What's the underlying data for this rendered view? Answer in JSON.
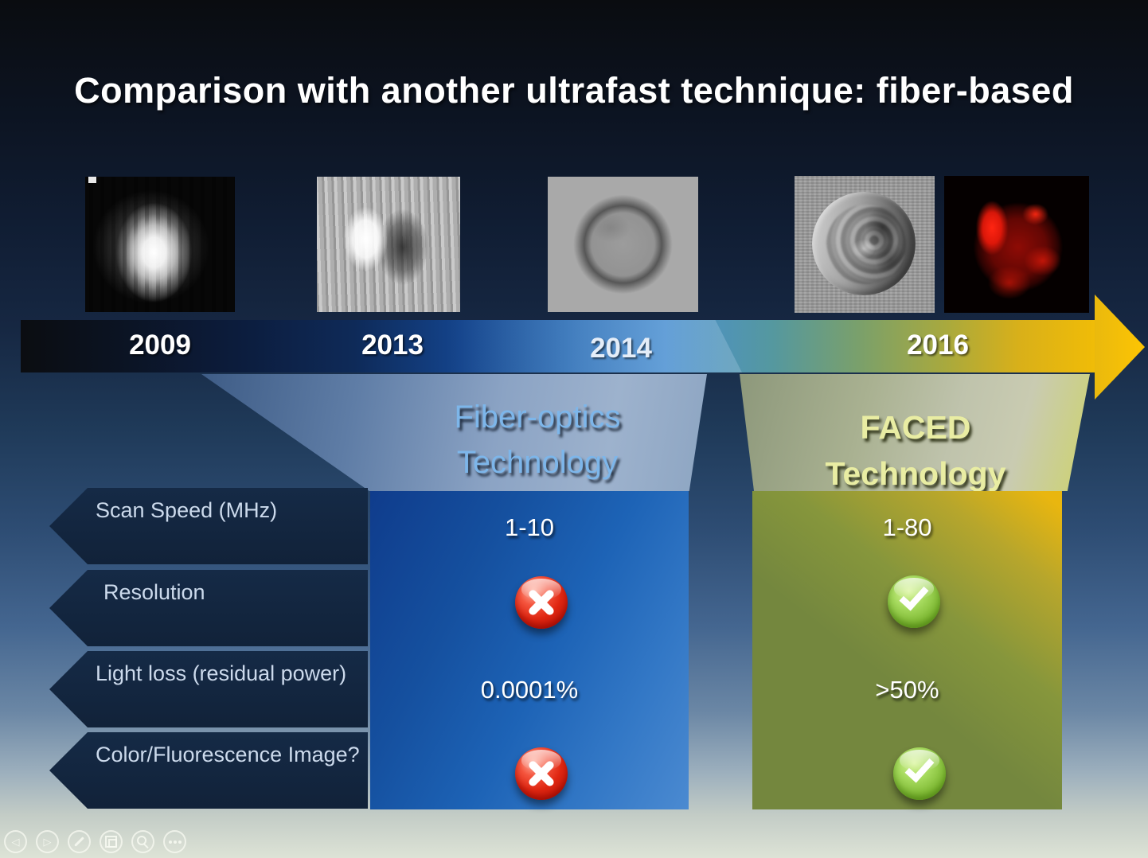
{
  "title": "Comparison with another ultrafast technique: fiber-based",
  "timeline": {
    "years": [
      "2009",
      "2013",
      "2014",
      "2016"
    ]
  },
  "cell_images": [
    "blurred-bright-streak-cell-2009",
    "noisy-bright-dark-blob-cell-2013",
    "brightfield-round-cell-2014",
    "phase-contrast-textured-cell-2016",
    "red-fluorescence-cell-2016"
  ],
  "tech": {
    "fiber": {
      "line1": "Fiber-optics",
      "line2": "Technology"
    },
    "faced": {
      "line1": "FACED",
      "line2": "Technology"
    }
  },
  "rows": [
    {
      "label": "Scan Speed (MHz)",
      "type": "text",
      "fiber": "1-10",
      "faced": "1-80"
    },
    {
      "label": "Resolution",
      "type": "icon",
      "fiber": "cross",
      "faced": "check"
    },
    {
      "label": "Light loss (residual power)",
      "type": "text",
      "fiber": "0.0001%",
      "faced": ">50%"
    },
    {
      "label": "Color/Fluorescence Image?",
      "type": "icon",
      "fiber": "cross",
      "faced": "check"
    }
  ],
  "colors": {
    "fiber_title": "#7db6ea",
    "faced_title": "#e9eda3",
    "fiber_box": "#1d63b6",
    "faced_box_green": "#74873e",
    "faced_box_gold": "#e9b60f",
    "cross_red": "#e02712",
    "check_green": "#7ab52e",
    "arrow_gold": "#f0bc07"
  },
  "controls": [
    {
      "name": "previous-slide"
    },
    {
      "name": "next-slide"
    },
    {
      "name": "pen-tools"
    },
    {
      "name": "see-all-slides"
    },
    {
      "name": "zoom"
    },
    {
      "name": "more-options"
    }
  ]
}
